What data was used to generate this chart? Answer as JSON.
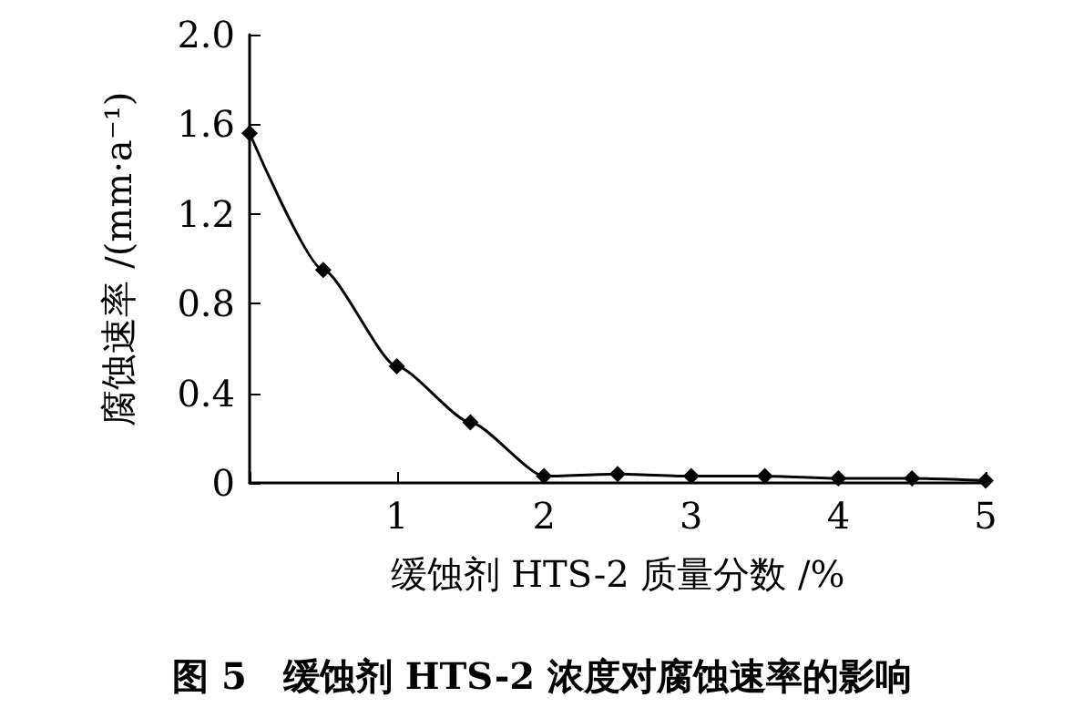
{
  "chart_data": {
    "type": "line",
    "title": "图 5　缓蚀剂 HTS-2 浓度对腐蚀速率的影响",
    "xlabel": "缓蚀剂 HTS-2 质量分数 /%",
    "ylabel": "腐蚀速率 /(mm·a⁻¹)",
    "x": [
      0,
      0.5,
      1,
      1.5,
      2,
      2.5,
      3,
      3.5,
      4,
      4.5,
      5
    ],
    "series": [
      {
        "color": "#000000",
        "values": [
          1.56,
          0.95,
          0.52,
          0.27,
          0.03,
          0.04,
          0.03,
          0.03,
          0.02,
          0.02,
          0.01
        ]
      }
    ],
    "xlim": [
      0,
      5
    ],
    "xticks": [
      {
        "value": 0,
        "label": null
      },
      1,
      2,
      3,
      4,
      5
    ],
    "ylim": [
      0,
      2
    ],
    "yticks": [
      0,
      0.4,
      0.8,
      1.2,
      1.6,
      {
        "value": 2,
        "label": "2.0"
      }
    ],
    "marker": "diamond",
    "line_style": "solid",
    "grid": false
  }
}
